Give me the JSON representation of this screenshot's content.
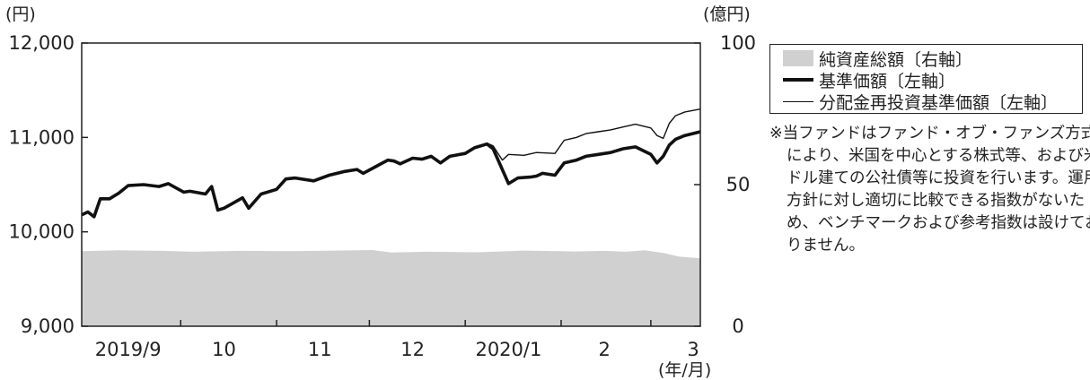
{
  "chart_data": {
    "type": "line",
    "y_left_unit": "(円)",
    "y_right_unit": "(億円)",
    "x_unit": "(年/月)",
    "y_left_ticks": [
      "12,000",
      "11,000",
      "10,000",
      "9,000"
    ],
    "y_left_range": [
      9000,
      12000
    ],
    "y_right_ticks": [
      "100",
      "50",
      "0"
    ],
    "y_right_range": [
      0,
      100
    ],
    "x_tick_labels": [
      "2019/9",
      "10",
      "11",
      "12",
      "2020/1",
      "2",
      "3"
    ],
    "x_range": [
      "2019-08-30",
      "2020-03-17"
    ],
    "x_tick_dates": [
      "2019-09-14",
      "2019-10-15",
      "2019-11-15",
      "2019-12-15",
      "2020-01-15",
      "2020-02-15",
      "2020-03-15"
    ],
    "series": [
      {
        "name": "純資産総額〔右軸〕",
        "axis": "right",
        "style": "area",
        "color": "#d0d0d0",
        "points": [
          [
            "2019-08-30",
            26.5
          ],
          [
            "2019-09-10",
            26.8
          ],
          [
            "2019-09-25",
            26.6
          ],
          [
            "2019-10-05",
            26.3
          ],
          [
            "2019-10-20",
            26.6
          ],
          [
            "2019-11-05",
            26.5
          ],
          [
            "2019-11-20",
            26.7
          ],
          [
            "2019-12-02",
            26.9
          ],
          [
            "2019-12-08",
            26.0
          ],
          [
            "2019-12-20",
            26.3
          ],
          [
            "2020-01-05",
            26.1
          ],
          [
            "2020-01-20",
            26.7
          ],
          [
            "2020-02-05",
            26.4
          ],
          [
            "2020-02-15",
            26.6
          ],
          [
            "2020-02-22",
            26.3
          ],
          [
            "2020-02-28",
            26.8
          ],
          [
            "2020-03-05",
            25.9
          ],
          [
            "2020-03-10",
            24.6
          ],
          [
            "2020-03-17",
            24.0
          ]
        ]
      },
      {
        "name": "基準価額〔左軸〕",
        "axis": "left",
        "style": "thick",
        "color": "#111111",
        "points": [
          [
            "2019-08-30",
            10180
          ],
          [
            "2019-09-01",
            10210
          ],
          [
            "2019-09-03",
            10160
          ],
          [
            "2019-09-05",
            10350
          ],
          [
            "2019-09-08",
            10350
          ],
          [
            "2019-09-11",
            10410
          ],
          [
            "2019-09-14",
            10490
          ],
          [
            "2019-09-19",
            10500
          ],
          [
            "2019-09-24",
            10480
          ],
          [
            "2019-09-27",
            10510
          ],
          [
            "2019-10-02",
            10420
          ],
          [
            "2019-10-04",
            10430
          ],
          [
            "2019-10-09",
            10400
          ],
          [
            "2019-10-11",
            10480
          ],
          [
            "2019-10-13",
            10230
          ],
          [
            "2019-10-15",
            10250
          ],
          [
            "2019-10-21",
            10360
          ],
          [
            "2019-10-23",
            10250
          ],
          [
            "2019-10-27",
            10400
          ],
          [
            "2019-11-01",
            10450
          ],
          [
            "2019-11-04",
            10560
          ],
          [
            "2019-11-07",
            10570
          ],
          [
            "2019-11-13",
            10540
          ],
          [
            "2019-11-18",
            10600
          ],
          [
            "2019-11-23",
            10640
          ],
          [
            "2019-11-27",
            10660
          ],
          [
            "2019-11-29",
            10620
          ],
          [
            "2019-12-03",
            10690
          ],
          [
            "2019-12-07",
            10760
          ],
          [
            "2019-12-09",
            10750
          ],
          [
            "2019-12-11",
            10720
          ],
          [
            "2019-12-15",
            10780
          ],
          [
            "2019-12-18",
            10770
          ],
          [
            "2019-12-21",
            10800
          ],
          [
            "2019-12-24",
            10730
          ],
          [
            "2019-12-27",
            10800
          ],
          [
            "2020-01-01",
            10830
          ],
          [
            "2020-01-04",
            10890
          ],
          [
            "2020-01-08",
            10930
          ],
          [
            "2020-01-10",
            10880
          ],
          [
            "2020-01-15",
            10510
          ],
          [
            "2020-01-18",
            10570
          ],
          [
            "2020-01-22",
            10580
          ],
          [
            "2020-01-24",
            10590
          ],
          [
            "2020-01-26",
            10620
          ],
          [
            "2020-01-30",
            10600
          ],
          [
            "2020-02-02",
            10730
          ],
          [
            "2020-02-06",
            10760
          ],
          [
            "2020-02-09",
            10800
          ],
          [
            "2020-02-13",
            10820
          ],
          [
            "2020-02-17",
            10840
          ],
          [
            "2020-02-21",
            10880
          ],
          [
            "2020-02-25",
            10900
          ],
          [
            "2020-03-01",
            10820
          ],
          [
            "2020-03-03",
            10730
          ],
          [
            "2020-03-05",
            10800
          ],
          [
            "2020-03-07",
            10920
          ],
          [
            "2020-03-09",
            10980
          ],
          [
            "2020-03-12",
            11020
          ],
          [
            "2020-03-17",
            11060
          ]
        ]
      },
      {
        "name": "分配金再投資基準価額〔左軸〕",
        "axis": "left",
        "style": "thin",
        "color": "#111111",
        "points": [
          [
            "2019-08-30",
            10180
          ],
          [
            "2019-09-01",
            10210
          ],
          [
            "2019-09-03",
            10160
          ],
          [
            "2019-09-05",
            10350
          ],
          [
            "2019-09-08",
            10350
          ],
          [
            "2019-09-11",
            10410
          ],
          [
            "2019-09-14",
            10490
          ],
          [
            "2019-09-19",
            10500
          ],
          [
            "2019-09-24",
            10480
          ],
          [
            "2019-09-27",
            10510
          ],
          [
            "2019-10-02",
            10420
          ],
          [
            "2019-10-04",
            10430
          ],
          [
            "2019-10-09",
            10400
          ],
          [
            "2019-10-11",
            10480
          ],
          [
            "2019-10-13",
            10230
          ],
          [
            "2019-10-15",
            10250
          ],
          [
            "2019-10-21",
            10360
          ],
          [
            "2019-10-23",
            10250
          ],
          [
            "2019-10-27",
            10400
          ],
          [
            "2019-11-01",
            10450
          ],
          [
            "2019-11-04",
            10560
          ],
          [
            "2019-11-07",
            10570
          ],
          [
            "2019-11-13",
            10540
          ],
          [
            "2019-11-18",
            10600
          ],
          [
            "2019-11-23",
            10640
          ],
          [
            "2019-11-27",
            10660
          ],
          [
            "2019-11-29",
            10620
          ],
          [
            "2019-12-03",
            10690
          ],
          [
            "2019-12-07",
            10760
          ],
          [
            "2019-12-09",
            10750
          ],
          [
            "2019-12-11",
            10720
          ],
          [
            "2019-12-15",
            10780
          ],
          [
            "2019-12-18",
            10770
          ],
          [
            "2019-12-21",
            10800
          ],
          [
            "2019-12-24",
            10730
          ],
          [
            "2019-12-27",
            10800
          ],
          [
            "2020-01-01",
            10830
          ],
          [
            "2020-01-04",
            10890
          ],
          [
            "2020-01-08",
            10940
          ],
          [
            "2020-01-10",
            10910
          ],
          [
            "2020-01-13",
            10760
          ],
          [
            "2020-01-15",
            10820
          ],
          [
            "2020-01-20",
            10810
          ],
          [
            "2020-01-24",
            10840
          ],
          [
            "2020-01-30",
            10830
          ],
          [
            "2020-02-02",
            10970
          ],
          [
            "2020-02-06",
            11000
          ],
          [
            "2020-02-09",
            11040
          ],
          [
            "2020-02-13",
            11060
          ],
          [
            "2020-02-17",
            11080
          ],
          [
            "2020-02-21",
            11110
          ],
          [
            "2020-02-25",
            11140
          ],
          [
            "2020-03-01",
            11100
          ],
          [
            "2020-03-03",
            11020
          ],
          [
            "2020-03-05",
            10990
          ],
          [
            "2020-03-07",
            11150
          ],
          [
            "2020-03-09",
            11230
          ],
          [
            "2020-03-12",
            11270
          ],
          [
            "2020-03-17",
            11300
          ]
        ]
      }
    ]
  },
  "legend": {
    "net_assets": "純資産総額〔右軸〕",
    "nav": "基準価額〔左軸〕",
    "nav_reinvested": "分配金再投資基準価額〔左軸〕"
  },
  "note": "※当ファンドはファンド・オブ・ファンズ方式により、米国を中心とする株式等、および米ドル建ての公社債等に投資を行います。運用方針に対し適切に比較できる指数がないため、ベンチマークおよび参考指数は設けておりません。"
}
